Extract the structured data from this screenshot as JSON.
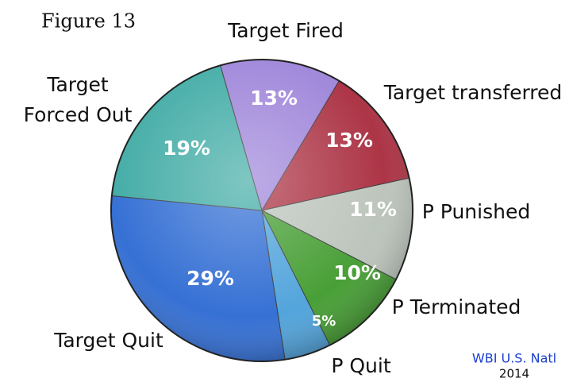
{
  "chart_data": {
    "type": "pie",
    "title": "Figure 13",
    "categories": [
      "Target Fired",
      "Target transferred",
      "P Punished",
      "P Terminated",
      "P Quit",
      "Target Quit",
      "Target\nForced Out"
    ],
    "values": [
      13,
      13,
      11,
      10,
      5,
      29,
      19
    ],
    "value_labels": [
      "13%",
      "13%",
      "11%",
      "10%",
      "5%",
      "29%",
      "19%"
    ],
    "colors": [
      "#9a80d8",
      "#a82a3c",
      "#b9c2b9",
      "#3f9a2c",
      "#4aa0da",
      "#2b69d2",
      "#3aa8a2"
    ],
    "source": "WBI U.S. Natl",
    "source_year": "2014"
  }
}
